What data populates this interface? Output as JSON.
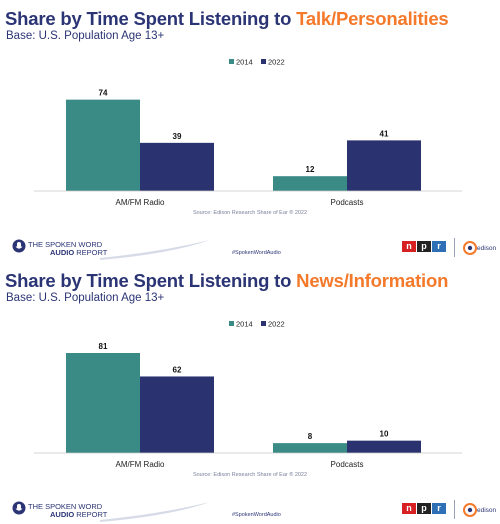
{
  "slides": [
    {
      "title_prefix": "Share by Time Spent Listening to ",
      "title_highlight": "Talk/Personalities",
      "subtitle": "Base: U.S. Population Age 13+",
      "source": "Source: Edison Research Share of Ear ® 2022",
      "hashtag": "#SpokenWordAudio",
      "logo_line1": "THE SPOKEN WORD",
      "logo_line2_bold": "AUDIO",
      "logo_line2_rest": " REPORT",
      "npr_letters": [
        "n",
        "p",
        "r"
      ],
      "edison_text": "edison"
    },
    {
      "title_prefix": "Share by Time Spent Listening to ",
      "title_highlight": "News/Information",
      "subtitle": "Base: U.S. Population Age 13+",
      "source": "Source: Edison Research Share of Ear ® 2022",
      "hashtag": "#SpokenWordAudio",
      "logo_line1": "THE SPOKEN WORD",
      "logo_line2_bold": "AUDIO",
      "logo_line2_rest": " REPORT",
      "npr_letters": [
        "n",
        "p",
        "r"
      ],
      "edison_text": "edison"
    }
  ],
  "colors": {
    "title": "#2b3575",
    "highlight": "#f4792b",
    "series_2014": "#3a8a85",
    "series_2022": "#2b3270"
  },
  "chart_data": [
    {
      "type": "bar",
      "title": "Share by Time Spent Listening to Talk/Personalities",
      "categories": [
        "AM/FM Radio",
        "Podcasts"
      ],
      "series": [
        {
          "name": "2014",
          "values": [
            74,
            12
          ]
        },
        {
          "name": "2022",
          "values": [
            39,
            41
          ]
        }
      ],
      "ylim": [
        0,
        81
      ],
      "legend": "top-center",
      "grid": false
    },
    {
      "type": "bar",
      "title": "Share by Time Spent Listening to News/Information",
      "categories": [
        "AM/FM Radio",
        "Podcasts"
      ],
      "series": [
        {
          "name": "2014",
          "values": [
            81,
            8
          ]
        },
        {
          "name": "2022",
          "values": [
            62,
            10
          ]
        }
      ],
      "ylim": [
        0,
        81
      ],
      "legend": "top-center",
      "grid": false
    }
  ]
}
